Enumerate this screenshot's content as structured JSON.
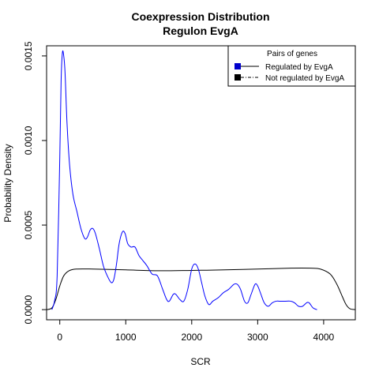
{
  "chart_data": {
    "type": "line",
    "title": "Coexpression Distribution",
    "subtitle": "Regulon EvgA",
    "xlabel": "SCR",
    "ylabel": "Probability Density",
    "xlim": [
      -200,
      4480
    ],
    "ylim": [
      -6e-05,
      0.00156
    ],
    "x_ticks": [
      0,
      1000,
      2000,
      3000,
      4000
    ],
    "x_tick_labels": [
      "0",
      "1000",
      "2000",
      "3000",
      "4000"
    ],
    "y_ticks": [
      0,
      0.0005,
      0.001,
      0.0015
    ],
    "y_tick_labels": [
      "0.0000",
      "0.0005",
      "0.0010",
      "0.0015"
    ],
    "grid": false,
    "legend": {
      "title": "Pairs of genes",
      "placement": "top-right",
      "entries": [
        {
          "label": "Regulated by  EvgA",
          "color": "#0000cc",
          "line": "solid"
        },
        {
          "label": "Not regulated by  EvgA",
          "color": "#000000",
          "line": "dashdot"
        }
      ]
    },
    "series": [
      {
        "label_ref": "Regulated by  EvgA",
        "color": "#0000ff",
        "points": [
          [
            -120,
            0.0
          ],
          [
            -80,
            5e-05
          ],
          [
            -40,
            0.0002
          ],
          [
            0,
            0.0009
          ],
          [
            20,
            0.00135
          ],
          [
            40,
            0.00152
          ],
          [
            60,
            0.0015
          ],
          [
            80,
            0.0014
          ],
          [
            110,
            0.0011
          ],
          [
            150,
            0.00085
          ],
          [
            200,
            0.00068
          ],
          [
            260,
            0.00058
          ],
          [
            320,
            0.00048
          ],
          [
            380,
            0.00042
          ],
          [
            420,
            0.00043
          ],
          [
            460,
            0.00047
          ],
          [
            500,
            0.00048
          ],
          [
            540,
            0.00045
          ],
          [
            600,
            0.00036
          ],
          [
            660,
            0.00026
          ],
          [
            720,
            0.0002
          ],
          [
            780,
            0.00016
          ],
          [
            820,
            0.00018
          ],
          [
            860,
            0.00027
          ],
          [
            900,
            0.00039
          ],
          [
            950,
            0.00046
          ],
          [
            990,
            0.00045
          ],
          [
            1030,
            0.00039
          ],
          [
            1080,
            0.00037
          ],
          [
            1140,
            0.00037
          ],
          [
            1200,
            0.00032
          ],
          [
            1260,
            0.00029
          ],
          [
            1320,
            0.00026
          ],
          [
            1400,
            0.00021
          ],
          [
            1480,
            0.0002
          ],
          [
            1560,
            0.00012
          ],
          [
            1620,
            6e-05
          ],
          [
            1660,
            5e-05
          ],
          [
            1720,
            9e-05
          ],
          [
            1760,
            9e-05
          ],
          [
            1820,
            6e-05
          ],
          [
            1880,
            5e-05
          ],
          [
            1940,
            0.00012
          ],
          [
            2000,
            0.00024
          ],
          [
            2050,
            0.00027
          ],
          [
            2100,
            0.00024
          ],
          [
            2150,
            0.00016
          ],
          [
            2200,
            8e-05
          ],
          [
            2260,
            3e-05
          ],
          [
            2320,
            5e-05
          ],
          [
            2400,
            7e-05
          ],
          [
            2480,
            0.0001
          ],
          [
            2560,
            0.00012
          ],
          [
            2640,
            0.00015
          ],
          [
            2690,
            0.00015
          ],
          [
            2740,
            0.00012
          ],
          [
            2800,
            5e-05
          ],
          [
            2850,
            4e-05
          ],
          [
            2900,
            9e-05
          ],
          [
            2960,
            0.00015
          ],
          [
            3000,
            0.00014
          ],
          [
            3050,
            9e-05
          ],
          [
            3100,
            4e-05
          ],
          [
            3160,
            2e-05
          ],
          [
            3220,
            4e-05
          ],
          [
            3280,
            5e-05
          ],
          [
            3340,
            5e-05
          ],
          [
            3420,
            5e-05
          ],
          [
            3500,
            5e-05
          ],
          [
            3560,
            4e-05
          ],
          [
            3620,
            2e-05
          ],
          [
            3680,
            2e-05
          ],
          [
            3740,
            4e-05
          ],
          [
            3780,
            4e-05
          ],
          [
            3840,
            1e-05
          ],
          [
            3900,
            0.0
          ]
        ]
      },
      {
        "label_ref": "Not regulated by  EvgA",
        "color": "#000000",
        "points": [
          [
            -200,
            0.0
          ],
          [
            -120,
            1e-05
          ],
          [
            -60,
            6e-05
          ],
          [
            0,
            0.00014
          ],
          [
            60,
            0.0002
          ],
          [
            140,
            0.00023
          ],
          [
            250,
            0.00024
          ],
          [
            500,
            0.00024
          ],
          [
            1000,
            0.000235
          ],
          [
            1500,
            0.00023
          ],
          [
            2000,
            0.000232
          ],
          [
            2500,
            0.000235
          ],
          [
            3000,
            0.00024
          ],
          [
            3500,
            0.000245
          ],
          [
            3800,
            0.000245
          ],
          [
            3950,
            0.00024
          ],
          [
            4100,
            0.00021
          ],
          [
            4200,
            0.00015
          ],
          [
            4280,
            8e-05
          ],
          [
            4340,
            3e-05
          ],
          [
            4400,
            5e-06
          ],
          [
            4480,
            0.0
          ]
        ]
      }
    ]
  }
}
